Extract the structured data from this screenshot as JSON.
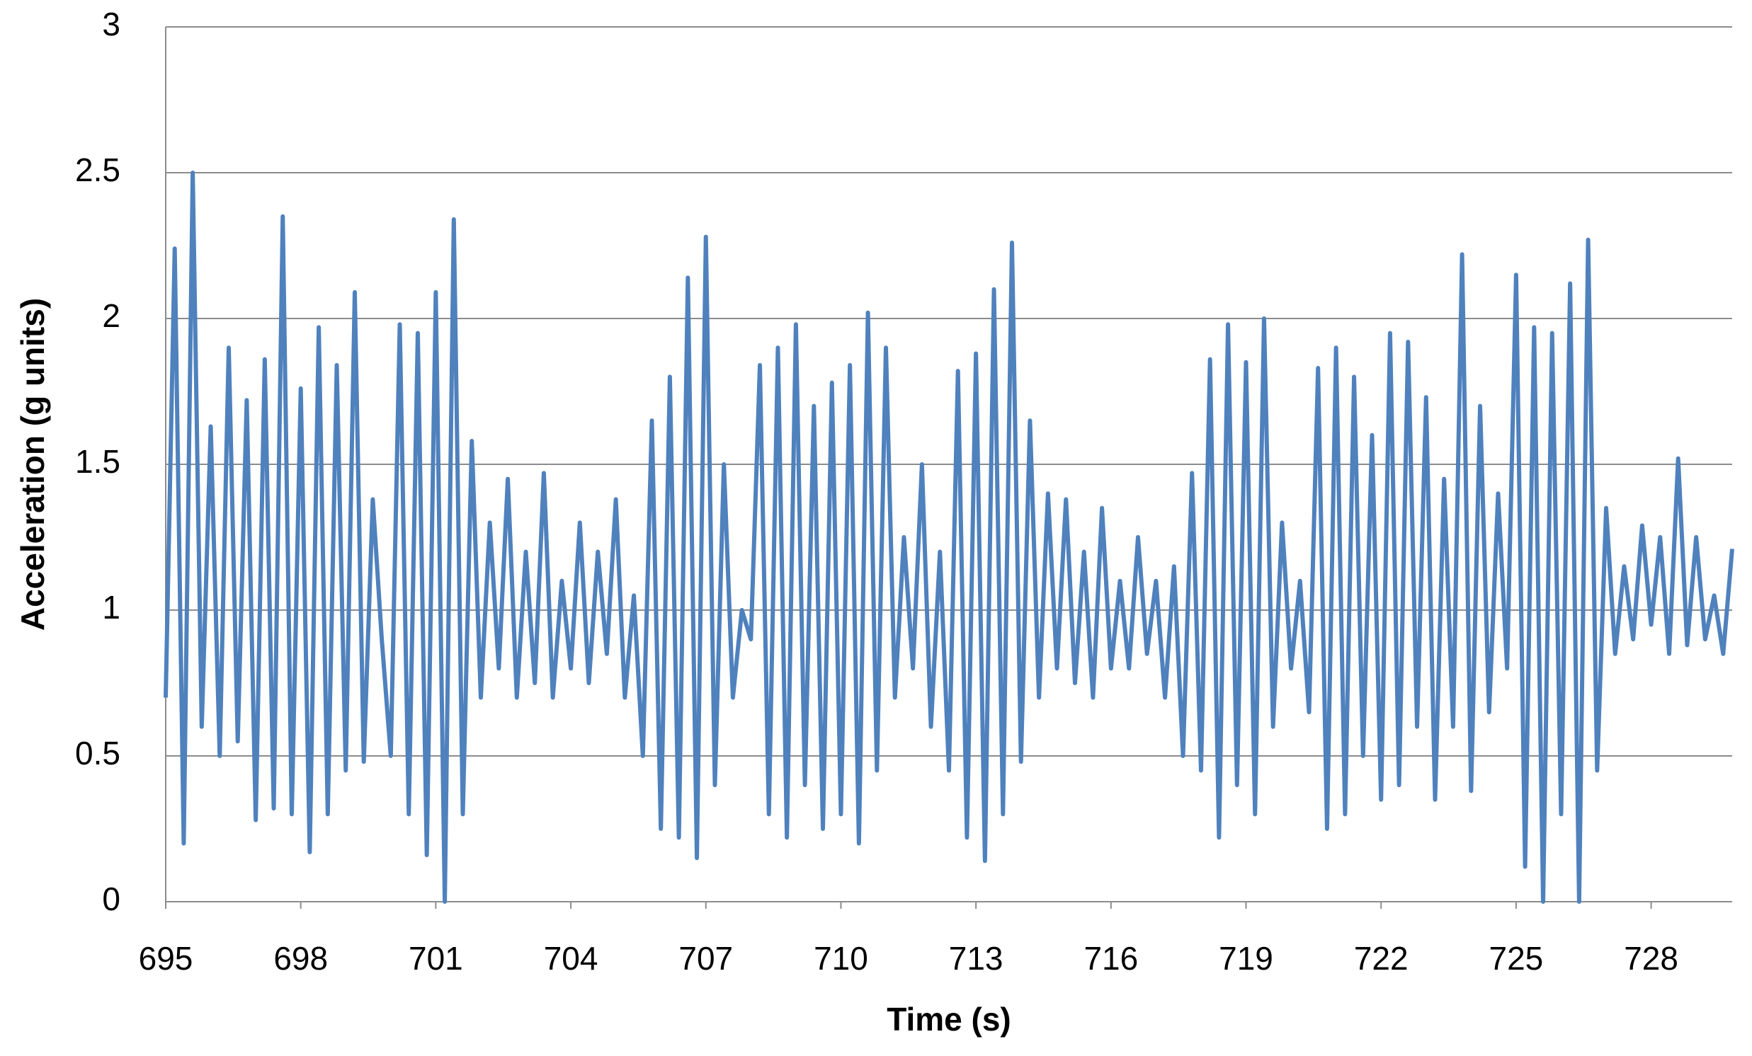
{
  "chart_data": {
    "type": "line",
    "xlabel": "Time (s)",
    "ylabel": "Acceleration (g units)",
    "color": "#4f81bd",
    "grid": true,
    "xlim": [
      695,
      729.8
    ],
    "xticks": [
      695,
      698,
      701,
      704,
      707,
      710,
      713,
      716,
      719,
      722,
      725,
      728
    ],
    "ylim": [
      0,
      3
    ],
    "yticks": [
      0,
      0.5,
      1,
      1.5,
      2,
      2.5,
      3
    ],
    "x": [
      695,
      695.2,
      695.4,
      695.6,
      695.8,
      696,
      696.2,
      696.4,
      696.6,
      696.8,
      697,
      697.2,
      697.4,
      697.6,
      697.8,
      698,
      698.2,
      698.4,
      698.6,
      698.8,
      699,
      699.2,
      699.4,
      699.6,
      699.8,
      700,
      700.2,
      700.4,
      700.6,
      700.8,
      701,
      701.2,
      701.4,
      701.6,
      701.8,
      702,
      702.2,
      702.4,
      702.6,
      702.8,
      703,
      703.2,
      703.4,
      703.6,
      703.8,
      704,
      704.2,
      704.4,
      704.6,
      704.8,
      705,
      705.2,
      705.4,
      705.6,
      705.8,
      706,
      706.2,
      706.4,
      706.6,
      706.8,
      707,
      707.2,
      707.4,
      707.6,
      707.8,
      708,
      708.2,
      708.4,
      708.6,
      708.8,
      709,
      709.2,
      709.4,
      709.6,
      709.8,
      710,
      710.2,
      710.4,
      710.6,
      710.8,
      711,
      711.2,
      711.4,
      711.6,
      711.8,
      712,
      712.2,
      712.4,
      712.6,
      712.8,
      713,
      713.2,
      713.4,
      713.6,
      713.8,
      714,
      714.2,
      714.4,
      714.6,
      714.8,
      715,
      715.2,
      715.4,
      715.6,
      715.8,
      716,
      716.2,
      716.4,
      716.6,
      716.8,
      717,
      717.2,
      717.4,
      717.6,
      717.8,
      718,
      718.2,
      718.4,
      718.6,
      718.8,
      719,
      719.2,
      719.4,
      719.6,
      719.8,
      720,
      720.2,
      720.4,
      720.6,
      720.8,
      721,
      721.2,
      721.4,
      721.6,
      721.8,
      722,
      722.2,
      722.4,
      722.6,
      722.8,
      723,
      723.2,
      723.4,
      723.6,
      723.8,
      724,
      724.2,
      724.4,
      724.6,
      724.8,
      725,
      725.2,
      725.4,
      725.6,
      725.8,
      726,
      726.2,
      726.4,
      726.6,
      726.8,
      727,
      727.2,
      727.4,
      727.6,
      727.8,
      728,
      728.2,
      728.4,
      728.6,
      728.8,
      729,
      729.2,
      729.4,
      729.6,
      729.8
    ],
    "values": [
      0.7,
      2.24,
      0.2,
      2.5,
      0.6,
      1.63,
      0.5,
      1.9,
      0.55,
      1.72,
      0.28,
      1.86,
      0.32,
      2.35,
      0.3,
      1.76,
      0.17,
      1.97,
      0.3,
      1.84,
      0.45,
      2.09,
      0.48,
      1.38,
      0.9,
      0.5,
      1.98,
      0.3,
      1.95,
      0.16,
      2.09,
      0,
      2.34,
      0.3,
      1.58,
      0.7,
      1.3,
      0.8,
      1.45,
      0.7,
      1.2,
      0.75,
      1.47,
      0.7,
      1.1,
      0.8,
      1.3,
      0.75,
      1.2,
      0.85,
      1.38,
      0.7,
      1.05,
      0.5,
      1.65,
      0.25,
      1.8,
      0.22,
      2.14,
      0.15,
      2.28,
      0.4,
      1.5,
      0.7,
      1,
      0.9,
      1.84,
      0.3,
      1.9,
      0.22,
      1.98,
      0.4,
      1.7,
      0.25,
      1.78,
      0.3,
      1.84,
      0.2,
      2.02,
      0.45,
      1.9,
      0.7,
      1.25,
      0.8,
      1.5,
      0.6,
      1.2,
      0.45,
      1.82,
      0.22,
      1.88,
      0.14,
      2.1,
      0.3,
      2.26,
      0.48,
      1.65,
      0.7,
      1.4,
      0.8,
      1.38,
      0.75,
      1.2,
      0.7,
      1.35,
      0.8,
      1.1,
      0.8,
      1.25,
      0.85,
      1.1,
      0.7,
      1.15,
      0.5,
      1.47,
      0.45,
      1.86,
      0.22,
      1.98,
      0.4,
      1.85,
      0.3,
      2,
      0.6,
      1.3,
      0.8,
      1.1,
      0.65,
      1.83,
      0.25,
      1.9,
      0.3,
      1.8,
      0.5,
      1.6,
      0.35,
      1.95,
      0.4,
      1.92,
      0.6,
      1.73,
      0.35,
      1.45,
      0.6,
      2.22,
      0.38,
      1.7,
      0.65,
      1.4,
      0.8,
      2.15,
      0.12,
      1.97,
      0,
      1.95,
      0.3,
      2.12,
      0,
      2.27,
      0.45,
      1.35,
      0.85,
      1.15,
      0.9,
      1.29,
      0.95,
      1.25,
      0.85,
      1.52,
      0.88,
      1.25,
      0.9,
      1.05,
      0.85,
      1.21
    ]
  }
}
